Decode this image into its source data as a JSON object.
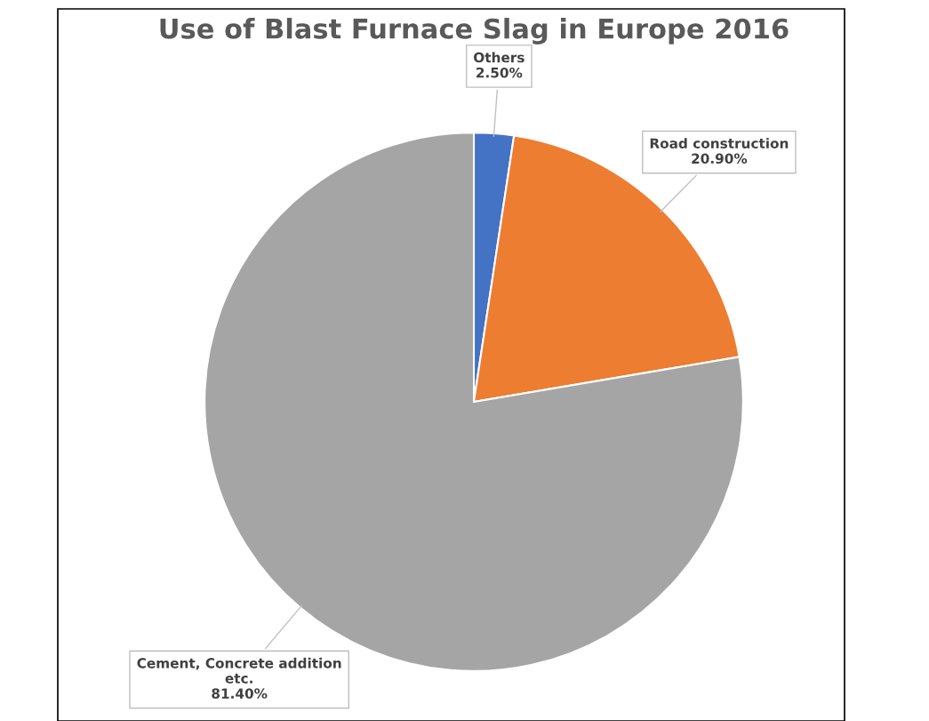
{
  "chart_data": {
    "type": "pie",
    "title": "Use of Blast Furnace Slag in Europe 2016",
    "categories": [
      "Others",
      "Road construction",
      "Cement, Concrete addition\netc."
    ],
    "values": [
      2.5,
      20.9,
      81.4
    ],
    "colors": [
      "#4472c4",
      "#ed7d31",
      "#a5a5a5"
    ],
    "value_labels": [
      "2.50%",
      "20.90%",
      "81.40%"
    ]
  }
}
